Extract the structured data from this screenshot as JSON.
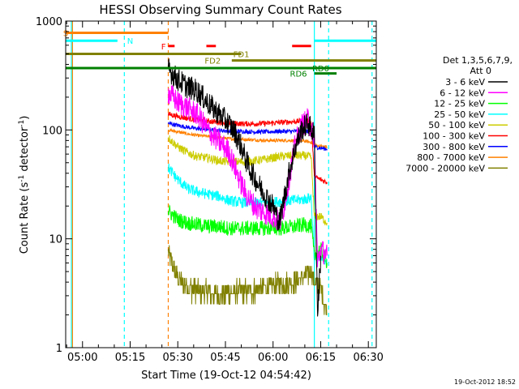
{
  "chart_data": {
    "type": "line",
    "title": "HESSI Observing Summary Count Rates",
    "xlabel": "Start Time (19-Oct-12 04:54:42)",
    "ylabel_main": "Count Rate (s",
    "ylabel_sup": "-1",
    "ylabel_mid": " detector",
    "ylabel_sup2": "-1",
    "ylabel_end": ")",
    "y_scale": "log",
    "ylim": [
      1,
      1000
    ],
    "xlim": [
      "04:54:42",
      "06:32:30"
    ],
    "x_ticks": [
      "05:00",
      "05:15",
      "05:30",
      "05:45",
      "06:00",
      "06:15",
      "06:30"
    ],
    "y_ticks": [
      "1",
      "10",
      "100",
      "1000"
    ],
    "footer": "19-Oct-2012 18:52",
    "legend": {
      "position": "right",
      "header1": "Det 1,3,5,6,7,9,",
      "header2": "Att 0"
    },
    "series": [
      {
        "name": "3 - 6 keV",
        "color": "#000000",
        "points": [
          [
            "05:27",
            360
          ],
          [
            "05:30",
            290
          ],
          [
            "05:33",
            250
          ],
          [
            "05:36",
            230
          ],
          [
            "05:40",
            170
          ],
          [
            "05:43",
            140
          ],
          [
            "05:46",
            115
          ],
          [
            "05:48",
            95
          ],
          [
            "05:50",
            70
          ],
          [
            "05:52",
            48
          ],
          [
            "05:55",
            33
          ],
          [
            "05:58",
            24
          ],
          [
            "06:00",
            20
          ],
          [
            "06:02",
            14
          ],
          [
            "06:03",
            20
          ],
          [
            "06:05",
            40
          ],
          [
            "06:07",
            70
          ],
          [
            "06:09",
            100
          ],
          [
            "06:11",
            115
          ],
          [
            "06:13",
            90
          ],
          [
            "06:14",
            2
          ],
          [
            "06:15",
            7
          ]
        ]
      },
      {
        "name": "6 - 12 keV",
        "color": "#ff00ff",
        "points": [
          [
            "05:27",
            220
          ],
          [
            "05:30",
            180
          ],
          [
            "05:33",
            160
          ],
          [
            "05:36",
            140
          ],
          [
            "05:40",
            95
          ],
          [
            "05:43",
            78
          ],
          [
            "05:46",
            64
          ],
          [
            "05:48",
            45
          ],
          [
            "05:50",
            32
          ],
          [
            "05:52",
            24
          ],
          [
            "05:55",
            19
          ],
          [
            "05:58",
            17
          ],
          [
            "06:00",
            16
          ],
          [
            "06:02",
            14
          ],
          [
            "06:03",
            17
          ],
          [
            "06:05",
            35
          ],
          [
            "06:07",
            75
          ],
          [
            "06:09",
            110
          ],
          [
            "06:11",
            125
          ],
          [
            "06:13",
            85
          ],
          [
            "06:14",
            6
          ],
          [
            "06:15",
            8
          ],
          [
            "06:17",
            7
          ]
        ]
      },
      {
        "name": "12 - 25 keV",
        "color": "#00ff00",
        "points": [
          [
            "05:27",
            18
          ],
          [
            "05:30",
            15
          ],
          [
            "05:33",
            14
          ],
          [
            "05:36",
            13.5
          ],
          [
            "05:40",
            13
          ],
          [
            "05:43",
            13
          ],
          [
            "05:46",
            12.5
          ],
          [
            "05:50",
            12.5
          ],
          [
            "05:54",
            12.5
          ],
          [
            "05:58",
            12.5
          ],
          [
            "06:02",
            12.5
          ],
          [
            "06:06",
            12.8
          ],
          [
            "06:10",
            13.5
          ],
          [
            "06:12",
            13
          ],
          [
            "06:13",
            7
          ],
          [
            "06:15",
            8
          ],
          [
            "06:17",
            6
          ]
        ]
      },
      {
        "name": "25 - 50 keV",
        "color": "#00ffff",
        "points": [
          [
            "05:27",
            45
          ],
          [
            "05:30",
            35
          ],
          [
            "05:33",
            29
          ],
          [
            "05:36",
            27
          ],
          [
            "05:40",
            25.5
          ],
          [
            "05:43",
            24.5
          ],
          [
            "05:46",
            22.5
          ],
          [
            "05:50",
            21.5
          ],
          [
            "05:54",
            21.5
          ],
          [
            "05:58",
            21.5
          ],
          [
            "06:02",
            22
          ],
          [
            "06:06",
            22.5
          ],
          [
            "06:10",
            23
          ],
          [
            "06:12",
            24
          ],
          [
            "06:13",
            6.5
          ],
          [
            "06:15",
            6.5
          ],
          [
            "06:17",
            6.5
          ]
        ]
      },
      {
        "name": "50 - 100 keV",
        "color": "#cccc00",
        "points": [
          [
            "05:27",
            85
          ],
          [
            "05:30",
            70
          ],
          [
            "05:33",
            62
          ],
          [
            "05:36",
            57
          ],
          [
            "05:40",
            55
          ],
          [
            "05:43",
            52
          ],
          [
            "05:46",
            51
          ],
          [
            "05:50",
            51
          ],
          [
            "05:54",
            52
          ],
          [
            "05:58",
            54
          ],
          [
            "06:02",
            57
          ],
          [
            "06:06",
            58
          ],
          [
            "06:10",
            58
          ],
          [
            "06:12",
            56
          ],
          [
            "06:13",
            16
          ],
          [
            "06:15",
            16
          ],
          [
            "06:17",
            14
          ]
        ]
      },
      {
        "name": "100 - 300 keV",
        "color": "#ff0000",
        "points": [
          [
            "05:27",
            140
          ],
          [
            "05:30",
            133
          ],
          [
            "05:33",
            128
          ],
          [
            "05:36",
            124
          ],
          [
            "05:40",
            120
          ],
          [
            "05:43",
            118
          ],
          [
            "05:46",
            116
          ],
          [
            "05:50",
            114
          ],
          [
            "05:54",
            114
          ],
          [
            "05:58",
            115
          ],
          [
            "06:02",
            117
          ],
          [
            "06:06",
            119
          ],
          [
            "06:10",
            121
          ],
          [
            "06:12",
            118
          ],
          [
            "06:13",
            37
          ],
          [
            "06:15",
            35
          ],
          [
            "06:17",
            33
          ]
        ]
      },
      {
        "name": "300 - 800 keV",
        "color": "#0000ff",
        "points": [
          [
            "05:27",
            115
          ],
          [
            "05:30",
            110
          ],
          [
            "05:33",
            106
          ],
          [
            "05:36",
            103
          ],
          [
            "05:40",
            101
          ],
          [
            "05:43",
            99
          ],
          [
            "05:46",
            98
          ],
          [
            "05:50",
            97
          ],
          [
            "05:54",
            96
          ],
          [
            "05:58",
            96
          ],
          [
            "06:02",
            97
          ],
          [
            "06:06",
            97
          ],
          [
            "06:10",
            98
          ],
          [
            "06:12",
            95
          ],
          [
            "06:13",
            70
          ],
          [
            "06:15",
            68
          ],
          [
            "06:17",
            67
          ]
        ]
      },
      {
        "name": "800 - 7000 keV",
        "color": "#ff8000",
        "points": [
          [
            "05:27",
            100
          ],
          [
            "05:30",
            96
          ],
          [
            "05:33",
            92
          ],
          [
            "05:36",
            89
          ],
          [
            "05:40",
            87
          ],
          [
            "05:43",
            85
          ],
          [
            "05:46",
            83
          ],
          [
            "05:50",
            82
          ],
          [
            "05:54",
            81
          ],
          [
            "05:58",
            80
          ],
          [
            "06:02",
            80
          ],
          [
            "06:06",
            80
          ],
          [
            "06:10",
            79
          ],
          [
            "06:12",
            77
          ],
          [
            "06:13",
            72
          ],
          [
            "06:15",
            71
          ],
          [
            "06:17",
            70
          ]
        ]
      },
      {
        "name": "7000 - 20000 keV",
        "color": "#808000",
        "points": [
          [
            "05:27",
            7.5
          ],
          [
            "05:29",
            5
          ],
          [
            "05:31",
            4
          ],
          [
            "05:34",
            3.5
          ],
          [
            "05:37",
            3.3
          ],
          [
            "05:40",
            3.2
          ],
          [
            "05:43",
            3
          ],
          [
            "05:46",
            3.2
          ],
          [
            "05:50",
            3.3
          ],
          [
            "05:54",
            3.4
          ],
          [
            "05:58",
            3.6
          ],
          [
            "06:02",
            3.8
          ],
          [
            "06:06",
            4
          ],
          [
            "06:10",
            4.5
          ],
          [
            "06:12",
            5
          ],
          [
            "06:13",
            4
          ],
          [
            "06:15",
            3.5
          ],
          [
            "06:17",
            2
          ]
        ]
      }
    ],
    "flag_bars": [
      {
        "label": "S",
        "color": "#ff8000",
        "level": 780,
        "start": "04:54:42",
        "end": "05:27:00",
        "label_at": "04:54:42"
      },
      {
        "label": "N",
        "color": "#00ffff",
        "level": 660,
        "start": "04:54:42",
        "end": "05:11:00",
        "label_at": "05:15:00"
      },
      {
        "label": "",
        "color": "#00ffff",
        "level": 660,
        "start": "06:13:00",
        "end": "06:32:30",
        "label_at": ""
      },
      {
        "label": "F",
        "color": "#ff0000",
        "level": 590,
        "start": "05:27:00",
        "end": "05:29:00",
        "label_at": "05:25:30"
      },
      {
        "label": "",
        "color": "#ff0000",
        "level": 590,
        "start": "05:39:00",
        "end": "05:42:00",
        "label_at": ""
      },
      {
        "label": "",
        "color": "#ff0000",
        "level": 590,
        "start": "06:06:00",
        "end": "06:12:00",
        "label_at": ""
      },
      {
        "label": "FD1",
        "color": "#808000",
        "level": 500,
        "start": "04:54:42",
        "end": "05:50:00",
        "label_at": "05:50:00"
      },
      {
        "label": "FD2",
        "color": "#808000",
        "level": 435,
        "start": "05:47:00",
        "end": "06:32:30",
        "label_at": "05:41:00"
      },
      {
        "label": "RD0",
        "color": "#008000",
        "level": 370,
        "start": "04:54:42",
        "end": "06:32:30",
        "label_at": "06:15:00"
      },
      {
        "label": "RD6",
        "color": "#008000",
        "level": 330,
        "start": "06:13:00",
        "end": "06:20:00",
        "label_at": "06:08:00"
      }
    ],
    "vertical_markers": [
      {
        "time": "04:56:30",
        "color": "#00ffff",
        "style": "solid"
      },
      {
        "time": "04:56:50",
        "color": "#ff8000",
        "style": "solid"
      },
      {
        "time": "05:13:10",
        "color": "#00ffff",
        "style": "dashed"
      },
      {
        "time": "05:27:00",
        "color": "#ff8000",
        "style": "dashed"
      },
      {
        "time": "06:13:00",
        "color": "#00ffff",
        "style": "solid"
      },
      {
        "time": "06:17:30",
        "color": "#00ffff",
        "style": "dashed"
      },
      {
        "time": "06:31:10",
        "color": "#00ffff",
        "style": "dashed"
      }
    ]
  }
}
